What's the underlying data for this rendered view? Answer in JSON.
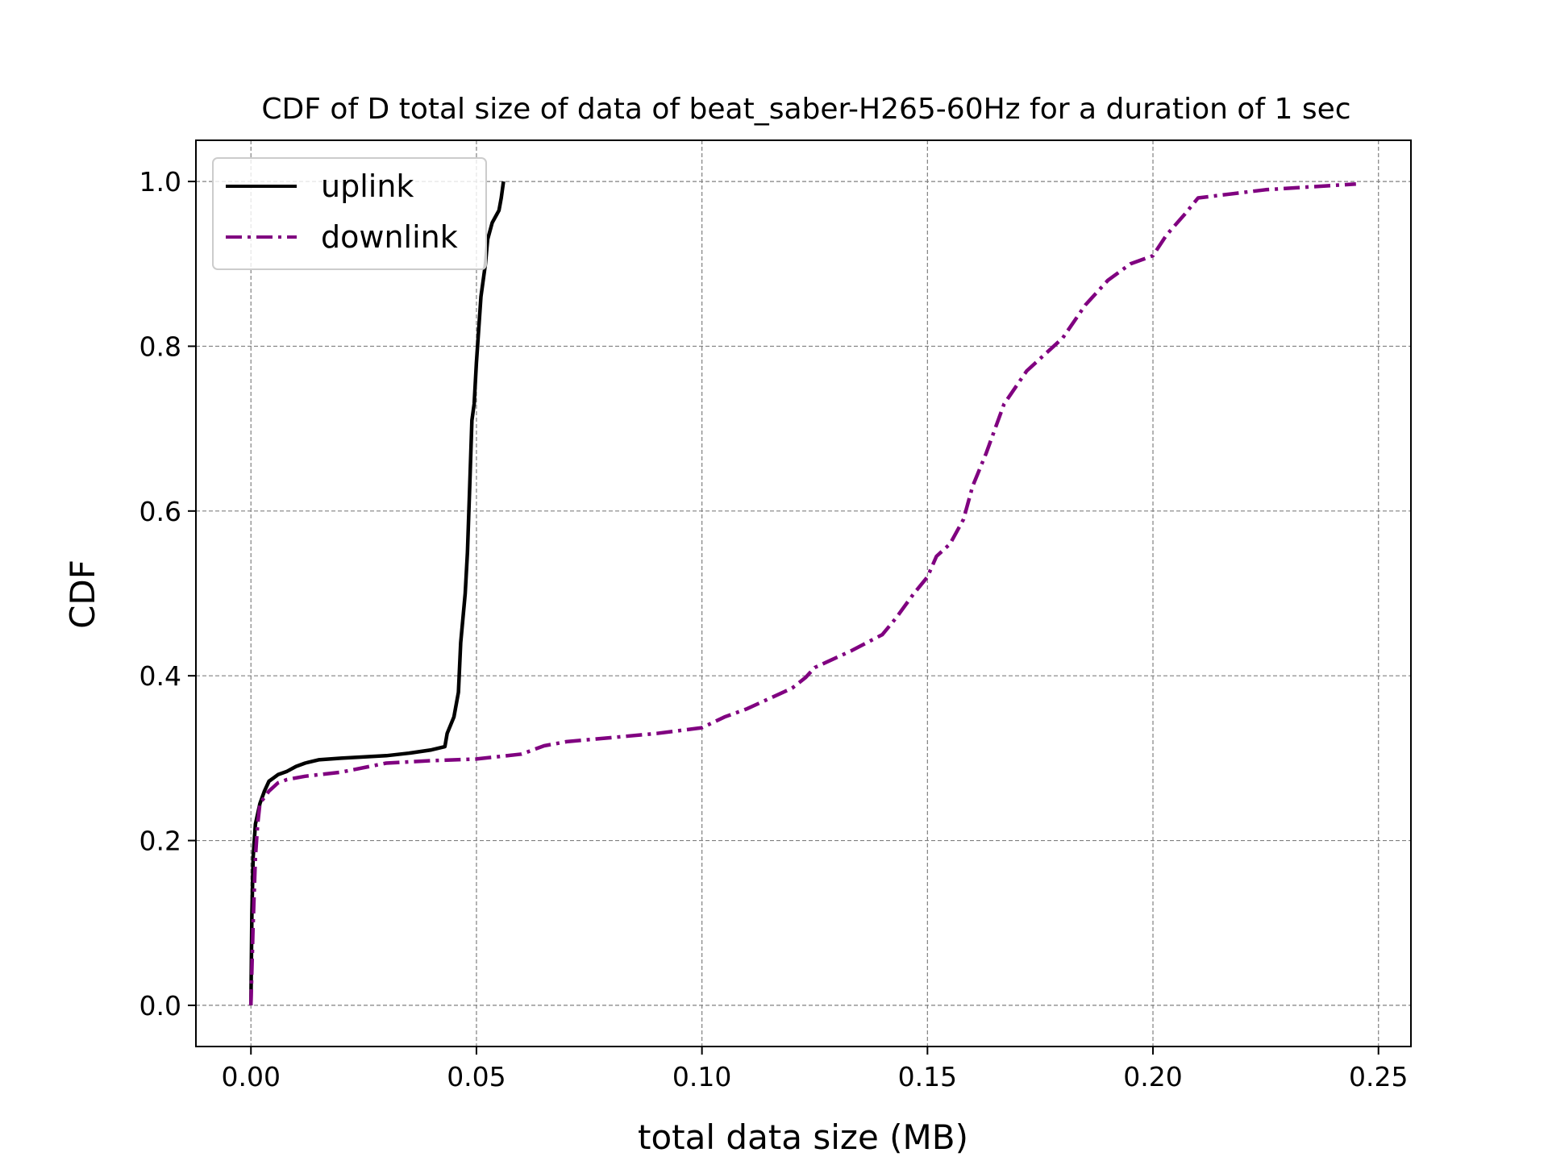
{
  "chart_data": {
    "type": "line",
    "title": "CDF of D total size of data of beat_saber-H265-60Hz for a duration of 1 sec",
    "xlabel": "total data size (MB)",
    "ylabel": "CDF",
    "xlim": [
      -0.0122,
      0.2572
    ],
    "ylim": [
      -0.05,
      1.05
    ],
    "xticks": [
      0.0,
      0.05,
      0.1,
      0.15,
      0.2,
      0.25
    ],
    "xtick_labels": [
      "0.00",
      "0.05",
      "0.10",
      "0.15",
      "0.20",
      "0.25"
    ],
    "yticks": [
      0.0,
      0.2,
      0.4,
      0.6,
      0.8,
      1.0
    ],
    "ytick_labels": [
      "0.0",
      "0.2",
      "0.4",
      "0.6",
      "0.8",
      "1.0"
    ],
    "grid": true,
    "legend_position": "top-left",
    "series": [
      {
        "name": "uplink",
        "color": "#000000",
        "style": "solid",
        "x": [
          0.0,
          0.0002,
          0.0005,
          0.001,
          0.002,
          0.003,
          0.004,
          0.005,
          0.006,
          0.008,
          0.01,
          0.012,
          0.015,
          0.02,
          0.03,
          0.035,
          0.04,
          0.043,
          0.0435,
          0.045,
          0.046,
          0.0465,
          0.047,
          0.0475,
          0.048,
          0.0485,
          0.049,
          0.0495,
          0.05,
          0.0505,
          0.051,
          0.052,
          0.0525,
          0.0535,
          0.0545,
          0.055,
          0.0555,
          0.056
        ],
        "y": [
          0.0,
          0.11,
          0.18,
          0.22,
          0.245,
          0.26,
          0.272,
          0.276,
          0.28,
          0.284,
          0.29,
          0.294,
          0.298,
          0.3,
          0.303,
          0.306,
          0.31,
          0.314,
          0.33,
          0.35,
          0.38,
          0.44,
          0.47,
          0.5,
          0.55,
          0.63,
          0.71,
          0.73,
          0.78,
          0.82,
          0.86,
          0.9,
          0.93,
          0.95,
          0.96,
          0.965,
          0.98,
          1.0
        ]
      },
      {
        "name": "downlink",
        "color": "#800080",
        "style": "dashdot",
        "x": [
          0.0,
          0.0005,
          0.001,
          0.0015,
          0.002,
          0.004,
          0.006,
          0.008,
          0.012,
          0.02,
          0.03,
          0.04,
          0.05,
          0.06,
          0.065,
          0.07,
          0.08,
          0.09,
          0.1,
          0.105,
          0.11,
          0.12,
          0.123,
          0.125,
          0.133,
          0.14,
          0.143,
          0.147,
          0.15,
          0.152,
          0.155,
          0.158,
          0.16,
          0.163,
          0.167,
          0.172,
          0.18,
          0.185,
          0.19,
          0.195,
          0.2,
          0.203,
          0.207,
          0.21,
          0.225,
          0.245
        ],
        "y": [
          0.0,
          0.1,
          0.18,
          0.22,
          0.245,
          0.26,
          0.27,
          0.274,
          0.278,
          0.283,
          0.294,
          0.297,
          0.299,
          0.305,
          0.315,
          0.32,
          0.325,
          0.33,
          0.337,
          0.35,
          0.36,
          0.385,
          0.398,
          0.41,
          0.43,
          0.45,
          0.47,
          0.5,
          0.52,
          0.545,
          0.56,
          0.59,
          0.63,
          0.67,
          0.73,
          0.77,
          0.81,
          0.85,
          0.88,
          0.9,
          0.91,
          0.935,
          0.96,
          0.98,
          0.99,
          0.997
        ]
      }
    ]
  }
}
